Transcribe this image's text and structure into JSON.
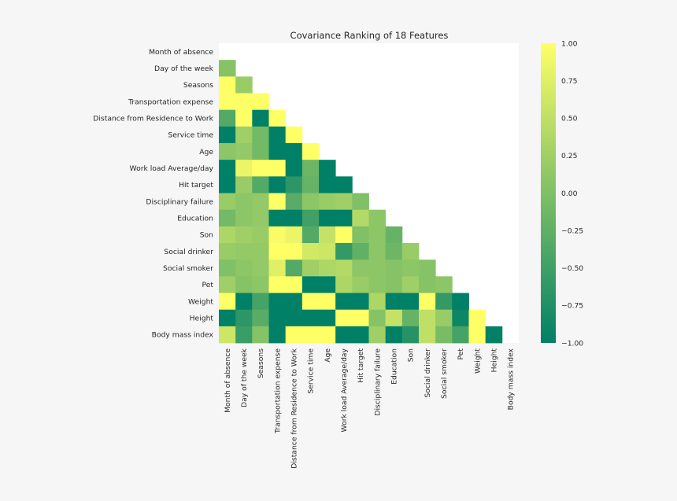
{
  "chart_data": {
    "type": "heatmap",
    "title": "Covariance Ranking of 18 Features",
    "features": [
      "Month of absence",
      "Day of the week",
      "Seasons",
      "Transportation expense",
      "Distance from Residence to Work",
      "Service time",
      "Age",
      "Work load Average/day ",
      "Hit target",
      "Disciplinary failure",
      "Education",
      "Son",
      "Social drinker",
      "Social smoker",
      "Pet",
      "Weight",
      "Height",
      "Body mass index"
    ],
    "mask": "upper-triangle-and-diagonal",
    "values": [
      [],
      [
        0.05
      ],
      [
        1.0,
        0.2
      ],
      [
        1.0,
        1.0,
        1.0
      ],
      [
        -0.35,
        1.0,
        -1.0,
        1.0
      ],
      [
        -1.0,
        0.25,
        -0.1,
        -1.0,
        1.0
      ],
      [
        0.1,
        0.15,
        -0.1,
        -1.0,
        -1.0,
        1.0
      ],
      [
        -1.0,
        0.85,
        1.0,
        1.0,
        -1.0,
        -0.15,
        -1.0
      ],
      [
        -1.0,
        0.2,
        -0.35,
        -1.0,
        -0.65,
        -0.2,
        -1.0,
        -1.0
      ],
      [
        0.2,
        0.1,
        0.15,
        1.0,
        -0.3,
        0.1,
        0.2,
        0.25,
        0.0
      ],
      [
        -0.1,
        0.1,
        0.15,
        -1.0,
        -1.0,
        -0.5,
        -1.0,
        -1.0,
        0.4,
        0.1
      ],
      [
        0.35,
        0.25,
        0.2,
        0.95,
        0.85,
        -0.35,
        0.55,
        1.0,
        0.0,
        0.1,
        -0.2
      ],
      [
        0.2,
        0.15,
        0.15,
        1.0,
        1.0,
        0.65,
        0.6,
        -0.6,
        -0.25,
        0.1,
        -0.15,
        0.2
      ],
      [
        0.0,
        0.1,
        0.15,
        0.75,
        -0.35,
        0.25,
        0.35,
        0.4,
        0.1,
        0.1,
        0.05,
        0.1,
        0.05
      ],
      [
        0.25,
        0.05,
        0.1,
        1.0,
        1.0,
        -1.0,
        -1.0,
        0.35,
        0.2,
        0.1,
        0.05,
        0.25,
        0.05,
        0.1
      ],
      [
        1.0,
        -1.0,
        -0.45,
        -1.0,
        -1.0,
        1.0,
        1.0,
        -1.0,
        -1.0,
        0.35,
        -1.0,
        -1.0,
        1.0,
        -0.6,
        -1.0
      ],
      [
        -1.0,
        -0.65,
        -0.3,
        -1.0,
        -1.0,
        -1.0,
        -1.0,
        1.0,
        1.0,
        0.05,
        0.55,
        -0.2,
        0.5,
        0.2,
        -0.9,
        1.0
      ],
      [
        0.6,
        -0.55,
        0.05,
        -1.0,
        1.0,
        1.0,
        1.0,
        -1.0,
        -1.0,
        0.25,
        -1.0,
        -0.7,
        0.5,
        -0.05,
        -0.45,
        1.0,
        -1.0
      ]
    ],
    "colorbar": {
      "min": -1.0,
      "max": 1.0,
      "ticks": [
        "1.00",
        "0.75",
        "0.50",
        "0.25",
        "0.00",
        "−0.25",
        "−0.50",
        "−0.75",
        "−1.00"
      ],
      "colormap": "summer",
      "color_low": "#008066",
      "color_high": "#ffff66"
    },
    "background_color": "#ffffff"
  }
}
